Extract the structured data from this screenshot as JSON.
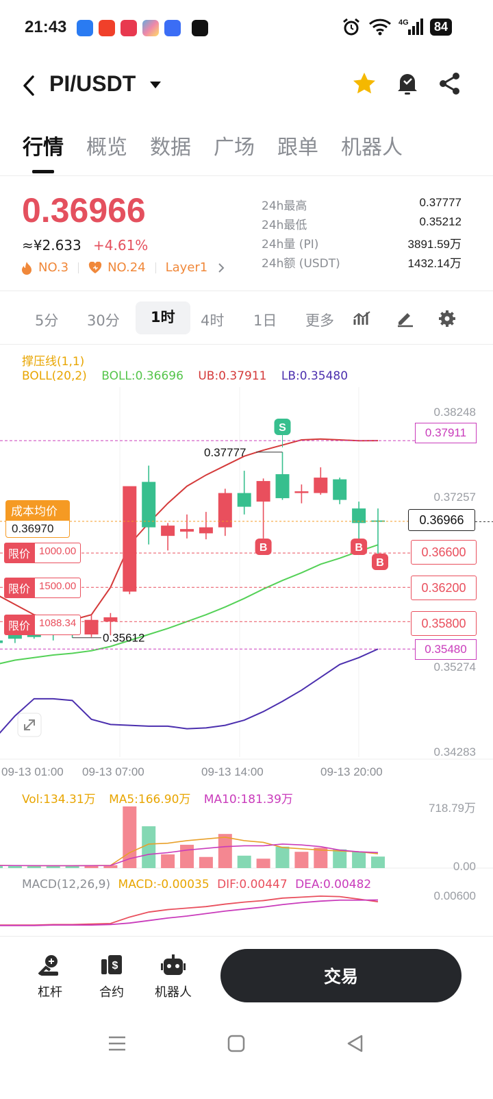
{
  "status_bar": {
    "time": "21:43",
    "battery": "84"
  },
  "header": {
    "pair": "PI/USDT"
  },
  "tabs": [
    "行情",
    "概览",
    "数据",
    "广场",
    "跟单",
    "机器人"
  ],
  "price": {
    "last": "0.36966",
    "cny": "≈¥2.633",
    "change": "+4.61%",
    "rank1": "NO.3",
    "rank2": "NO.24",
    "category": "Layer1"
  },
  "stats": [
    {
      "label": "24h最高",
      "value": "0.37777"
    },
    {
      "label": "24h最低",
      "value": "0.35212"
    },
    {
      "label": "24h量 (PI)",
      "value": "3891.59万"
    },
    {
      "label": "24h额 (USDT)",
      "value": "1432.14万"
    }
  ],
  "periods": [
    "5分",
    "30分",
    "1时",
    "4时",
    "1日",
    "更多"
  ],
  "indicators": {
    "title": "撑压线(1,1)",
    "boll_name": "BOLL(20,2)",
    "boll": "BOLL:0.36696",
    "ub": "UB:0.37911",
    "lb": "LB:0.35480"
  },
  "cost_label": {
    "title": "成本均价",
    "value": "0.36970"
  },
  "limit_orders": [
    {
      "label": "限价",
      "amount": "1000.00",
      "price": 0.366
    },
    {
      "label": "限价",
      "amount": "1500.00",
      "price": 0.362
    },
    {
      "label": "限价",
      "amount": "1088.34",
      "price": 0.358
    }
  ],
  "markers": {
    "sell": "S",
    "buy": "B",
    "high_label": "0.37777",
    "low_label": "0.35612"
  },
  "right_tags": {
    "ub": "0.37911",
    "last": "0.36966",
    "lb": "0.35480",
    "o1": "0.36600",
    "o2": "0.36200",
    "o3": "0.35800"
  },
  "volume": {
    "vol": "Vol:134.31万",
    "ma5": "MA5:166.90万",
    "ma10": "MA10:181.39万",
    "max": "718.79万",
    "min": "0.00"
  },
  "macd": {
    "name": "MACD(12,26,9)",
    "macd": "MACD:-0.00035",
    "dif": "DIF:0.00447",
    "dea": "DEA:0.00482",
    "max": "0.00600"
  },
  "bottom_nav": {
    "leverage": "杠杆",
    "contract": "合约",
    "robot": "机器人",
    "trade": "交易"
  },
  "colors": {
    "up": "#e94f5d",
    "down": "#37bf8e",
    "accent": "#f59a23",
    "ub": "#d43a3a",
    "boll": "#54d157",
    "lb": "#4b2fae",
    "ma5": "#e8a02a",
    "ma10": "#c93bbb"
  },
  "chart_data": {
    "type": "candlestick",
    "y_axis_ticks": [
      0.38248,
      0.37257,
      0.35274,
      0.34283
    ],
    "x_axis_labels": [
      "09-13 01:00",
      "09-13 07:00",
      "09-13 14:00",
      "09-13 20:00"
    ],
    "ylim": [
      0.34283,
      0.38248
    ],
    "candles": [
      {
        "o": 0.3558,
        "h": 0.3562,
        "l": 0.3552,
        "c": 0.3555
      },
      {
        "o": 0.357,
        "h": 0.3572,
        "l": 0.3555,
        "c": 0.356
      },
      {
        "o": 0.357,
        "h": 0.3572,
        "l": 0.356,
        "c": 0.3562
      },
      {
        "o": 0.357,
        "h": 0.3574,
        "l": 0.3558,
        "c": 0.3565
      },
      {
        "o": 0.3568,
        "h": 0.3572,
        "l": 0.35612,
        "c": 0.3565
      },
      {
        "o": 0.3565,
        "h": 0.3588,
        "l": 0.3562,
        "c": 0.3582
      },
      {
        "o": 0.358,
        "h": 0.359,
        "l": 0.3564,
        "c": 0.3585
      },
      {
        "o": 0.3615,
        "h": 0.3735,
        "l": 0.3612,
        "c": 0.3738
      },
      {
        "o": 0.3743,
        "h": 0.3762,
        "l": 0.367,
        "c": 0.369
      },
      {
        "o": 0.368,
        "h": 0.3695,
        "l": 0.3663,
        "c": 0.3692
      },
      {
        "o": 0.3685,
        "h": 0.3705,
        "l": 0.3677,
        "c": 0.3688
      },
      {
        "o": 0.3683,
        "h": 0.3708,
        "l": 0.3676,
        "c": 0.369
      },
      {
        "o": 0.369,
        "h": 0.3735,
        "l": 0.368,
        "c": 0.373
      },
      {
        "o": 0.373,
        "h": 0.3756,
        "l": 0.3705,
        "c": 0.3714
      },
      {
        "o": 0.372,
        "h": 0.3747,
        "l": 0.3677,
        "c": 0.3744
      },
      {
        "o": 0.3752,
        "h": 0.37777,
        "l": 0.3722,
        "c": 0.3724
      },
      {
        "o": 0.373,
        "h": 0.374,
        "l": 0.3718,
        "c": 0.3732
      },
      {
        "o": 0.373,
        "h": 0.376,
        "l": 0.3728,
        "c": 0.3748
      },
      {
        "o": 0.3746,
        "h": 0.3748,
        "l": 0.3717,
        "c": 0.3722
      },
      {
        "o": 0.3712,
        "h": 0.372,
        "l": 0.3675,
        "c": 0.3695
      },
      {
        "o": 0.3698,
        "h": 0.3712,
        "l": 0.3659,
        "c": 0.36966
      }
    ],
    "ub": [
      0.3612,
      0.36,
      0.3588,
      0.3582,
      0.3582,
      0.3588,
      0.362,
      0.367,
      0.3695,
      0.3718,
      0.3738,
      0.3751,
      0.3762,
      0.3773,
      0.378,
      0.3786,
      0.3792,
      0.3793,
      0.3792,
      0.3791,
      0.37911
    ],
    "boll": [
      0.353,
      0.3535,
      0.3538,
      0.3541,
      0.3543,
      0.3546,
      0.3551,
      0.3558,
      0.3565,
      0.3572,
      0.358,
      0.3588,
      0.3597,
      0.3607,
      0.3618,
      0.3628,
      0.3637,
      0.3647,
      0.3654,
      0.3662,
      0.36696
    ],
    "lb": [
      0.3445,
      0.347,
      0.349,
      0.349,
      0.3488,
      0.3466,
      0.346,
      0.3459,
      0.3458,
      0.3458,
      0.3455,
      0.3456,
      0.3459,
      0.3465,
      0.3475,
      0.3487,
      0.35,
      0.3515,
      0.353,
      0.3538,
      0.3548
    ],
    "volume_ylim": [
      0,
      718.79
    ],
    "volume": [
      28,
      30,
      28,
      26,
      28,
      30,
      34,
      718.79,
      488,
      160,
      272,
      130,
      398,
      145,
      110,
      250,
      190,
      238,
      218,
      190,
      134.31
    ],
    "vol_ma5": [
      32,
      30,
      28,
      28,
      28,
      30,
      32,
      180,
      280,
      290,
      320,
      340,
      360,
      320,
      300,
      240,
      225,
      210,
      200,
      190,
      166.9
    ],
    "vol_ma10": [
      30,
      30,
      29,
      28,
      28,
      29,
      30,
      110,
      160,
      180,
      210,
      230,
      250,
      260,
      260,
      280,
      270,
      250,
      210,
      190,
      181.39
    ],
    "dif": [
      -0.0002,
      -0.0002,
      -0.0002,
      -0.0001,
      -0.0001,
      0.0,
      0.0001,
      0.0014,
      0.0024,
      0.0029,
      0.0032,
      0.0035,
      0.004,
      0.0044,
      0.0047,
      0.0052,
      0.0054,
      0.0056,
      0.0055,
      0.005,
      0.00447
    ],
    "dea": [
      -0.0003,
      -0.0003,
      -0.0003,
      -0.0002,
      -0.0002,
      -0.0002,
      -0.0001,
      0.0002,
      0.0007,
      0.0012,
      0.0016,
      0.0021,
      0.0026,
      0.003,
      0.0034,
      0.0039,
      0.0043,
      0.0046,
      0.0048,
      0.0048,
      0.00482
    ],
    "macd_ylim": [
      -0.0006,
      0.006
    ]
  }
}
